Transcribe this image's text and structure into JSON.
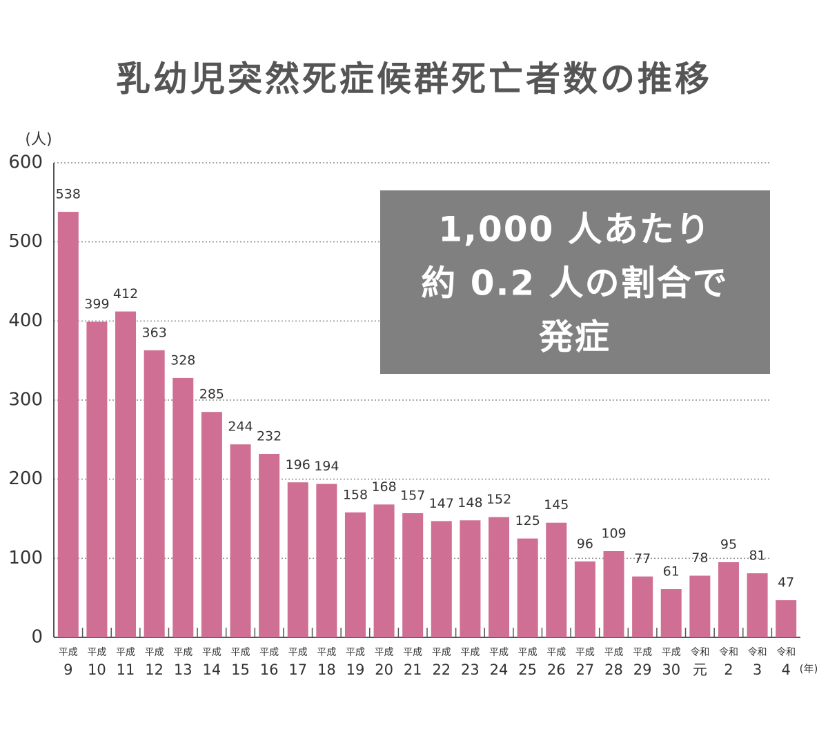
{
  "chart_data": {
    "type": "bar",
    "title": "乳幼児突然死症候群死亡者数の推移",
    "y_unit": "(人)",
    "x_unit": "(年)",
    "annotation": [
      "1,000 人あたり",
      "約 0.2 人の割合で",
      "発症"
    ],
    "categories": [
      [
        "平成",
        "9"
      ],
      [
        "平成",
        "10"
      ],
      [
        "平成",
        "11"
      ],
      [
        "平成",
        "12"
      ],
      [
        "平成",
        "13"
      ],
      [
        "平成",
        "14"
      ],
      [
        "平成",
        "15"
      ],
      [
        "平成",
        "16"
      ],
      [
        "平成",
        "17"
      ],
      [
        "平成",
        "18"
      ],
      [
        "平成",
        "19"
      ],
      [
        "平成",
        "20"
      ],
      [
        "平成",
        "21"
      ],
      [
        "平成",
        "22"
      ],
      [
        "平成",
        "23"
      ],
      [
        "平成",
        "24"
      ],
      [
        "平成",
        "25"
      ],
      [
        "平成",
        "26"
      ],
      [
        "平成",
        "27"
      ],
      [
        "平成",
        "28"
      ],
      [
        "平成",
        "29"
      ],
      [
        "平成",
        "30"
      ],
      [
        "令和",
        "元"
      ],
      [
        "令和",
        "2"
      ],
      [
        "令和",
        "3"
      ],
      [
        "令和",
        "4"
      ]
    ],
    "values": [
      538,
      399,
      412,
      363,
      328,
      285,
      244,
      232,
      196,
      194,
      158,
      168,
      157,
      147,
      148,
      152,
      125,
      145,
      96,
      109,
      77,
      61,
      78,
      95,
      81,
      47
    ],
    "color": "#cf6f93",
    "ylim": [
      0,
      600
    ],
    "yticks": [
      0,
      100,
      200,
      300,
      400,
      500,
      600
    ],
    "grid": true
  }
}
